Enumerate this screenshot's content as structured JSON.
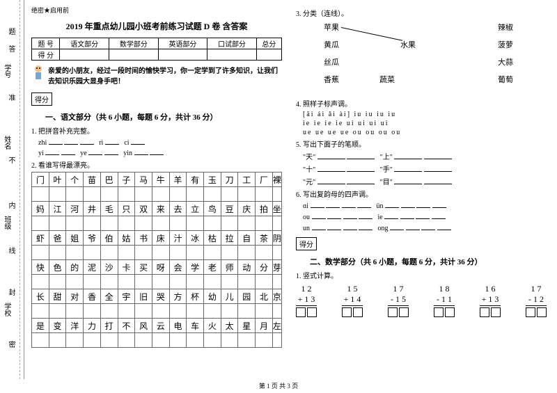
{
  "header": {
    "secret": "绝密★启用前"
  },
  "title": "2019 年重点幼儿园小班考前练习试题 D 卷 含答案",
  "margin_labels": {
    "l1": "学号",
    "l2": "姓名",
    "l3": "班级",
    "l4": "学校",
    "s1": "题",
    "s2": "答",
    "s3": "准",
    "s4": "不",
    "s5": "内",
    "s6": "线",
    "s7": "封",
    "s8": "密"
  },
  "score_table": {
    "headers": [
      "题 号",
      "语文部分",
      "数学部分",
      "英语部分",
      "口试部分",
      "总分"
    ],
    "row2": "得 分"
  },
  "intro": "亲爱的小朋友，经过一段时间的愉快学习，你一定学到了许多知识，让我们去知识乐园大显身手吧！",
  "score_label": "得分",
  "section1": {
    "title": "一、语文部分（共 6 小题，每题 6 分，共计 36 分）",
    "q1": "1. 把拼音补充完整。",
    "pinyin1": {
      "a": "zhi",
      "b": "ri",
      "c": "ci"
    },
    "pinyin2": {
      "a": "yi",
      "b": "ye",
      "c": "yin"
    },
    "q2": "2. 看谁写得最漂亮。",
    "chars": [
      [
        "门",
        "叶",
        "个",
        "苗",
        "巴",
        "子",
        "马",
        "牛",
        "羊",
        "有",
        "玉",
        "刀",
        "工",
        "厂",
        "裸"
      ],
      [
        "妈",
        "江",
        "河",
        "井",
        "毛",
        "只",
        "双",
        "来",
        "去",
        "立",
        "鸟",
        "豆",
        "庆",
        "拍",
        "坐"
      ],
      [
        "虾",
        "爸",
        "姐",
        "爷",
        "伯",
        "姑",
        "书",
        "床",
        "汁",
        "冰",
        "枯",
        "拉",
        "自",
        "茶",
        "阴"
      ],
      [
        "快",
        "色",
        "的",
        "泥",
        "沙",
        "卡",
        "买",
        "呀",
        "会",
        "学",
        "老",
        "师",
        "动",
        "分",
        "芽"
      ],
      [
        "长",
        "甜",
        "对",
        "香",
        "全",
        "宇",
        "旧",
        "哭",
        "方",
        "杯",
        "幼",
        "儿",
        "园",
        "北",
        "京"
      ],
      [
        "是",
        "变",
        "洋",
        "力",
        "打",
        "不",
        "风",
        "云",
        "电",
        "车",
        "火",
        "太",
        "星",
        "月",
        "左"
      ]
    ]
  },
  "q3": {
    "title": "3. 分类（连线）。",
    "items": {
      "i1": "苹果",
      "i2": "黄瓜",
      "i3": "丝瓜",
      "i4": "香蕉",
      "c1": "水果",
      "c2": "蔬菜",
      "r1": "辣椒",
      "r2": "菠萝",
      "r3": "大蒜",
      "r4": "葡萄"
    }
  },
  "q4": {
    "title": "4. 照样子标声调。",
    "line1": "[āi   ái   ǎi   ài]        iu   iu   iu   iu",
    "line2": " ie   ie   ie   ie        ui   ui   ui   ui",
    "line3": " ue   ue   ue   ue        ou   ou   ou   ou"
  },
  "q5": {
    "title": "5. 写出下面子的笔顺。",
    "items": {
      "a": "\"天\"",
      "b": "\"上\"",
      "c": "\"十\"",
      "d": "\"手\"",
      "e": "\"元\"",
      "f": "\"目\""
    }
  },
  "q6": {
    "title": "6. 写出复韵母的四声调。",
    "items": {
      "a": "ɑi",
      "b": "ün",
      "c": "ou",
      "d": "ie",
      "e": "un",
      "f": "ong"
    }
  },
  "section2": {
    "title": "二、数学部分（共 6 小题，每题 6 分，共计 36 分）",
    "q1": "1. 竖式计算。",
    "problems": [
      {
        "top": "1 2",
        "bot": "+ 1  3"
      },
      {
        "top": "1 5",
        "bot": "+ 1  4"
      },
      {
        "top": "1 7",
        "bot": "- 1  5"
      },
      {
        "top": "1 8",
        "bot": "- 1  1"
      },
      {
        "top": "1 6",
        "bot": "+ 1  3"
      },
      {
        "top": "1 7",
        "bot": "- 1  2"
      }
    ]
  },
  "footer": "第 1 页 共 3 页"
}
